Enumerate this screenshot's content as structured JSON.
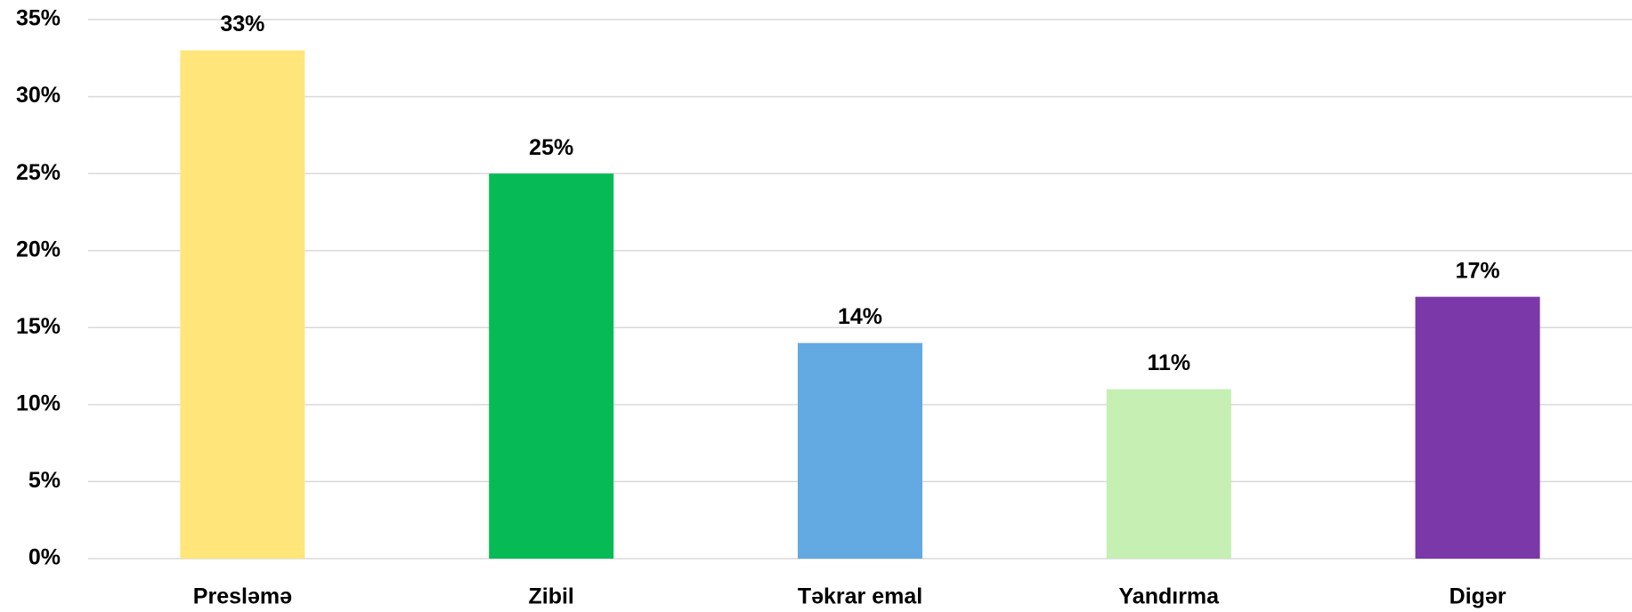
{
  "chart_data": {
    "type": "bar",
    "categories": [
      "Presləmə",
      "Zibil",
      "Təkrar emal",
      "Yandırma",
      "Digər"
    ],
    "values": [
      33,
      25,
      14,
      11,
      17
    ],
    "value_labels": [
      "33%",
      "25%",
      "14%",
      "11%",
      "17%"
    ],
    "colors": [
      "#ffe57a",
      "#06bb56",
      "#63a9e2",
      "#c5efb3",
      "#7a38a8"
    ],
    "ylim": [
      0,
      35
    ],
    "yticks": [
      {
        "value": 0,
        "label": "0%"
      },
      {
        "value": 5,
        "label": "5%"
      },
      {
        "value": 10,
        "label": "10%"
      },
      {
        "value": 15,
        "label": "15%"
      },
      {
        "value": 20,
        "label": "20%"
      },
      {
        "value": 25,
        "label": "25%"
      },
      {
        "value": 30,
        "label": "30%"
      },
      {
        "value": 35,
        "label": "35%"
      }
    ],
    "grid": true
  }
}
